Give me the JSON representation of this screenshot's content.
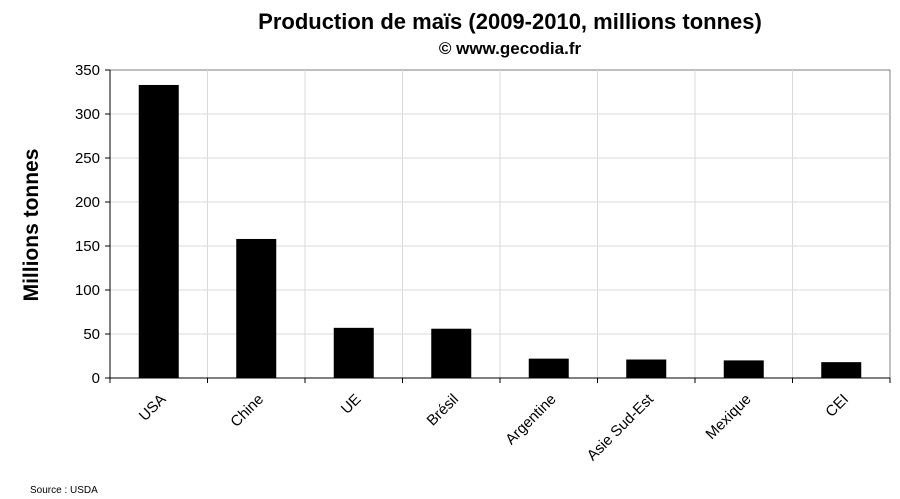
{
  "chart_data": {
    "type": "bar",
    "title": "Production de maïs (2009-2010, millions tonnes)",
    "subtitle": "© www.gecodia.fr",
    "xlabel": "",
    "ylabel": "Millions tonnes",
    "categories": [
      "USA",
      "Chine",
      "UE",
      "Brésil",
      "Argentine",
      "Asie Sud-Est",
      "Mexique",
      "CEI"
    ],
    "values": [
      333,
      158,
      57,
      56,
      22,
      21,
      20,
      18
    ],
    "ylim": [
      0,
      350
    ],
    "yticks": [
      0,
      50,
      100,
      150,
      200,
      250,
      300,
      350
    ],
    "grid": true,
    "bar_color": "#000000",
    "grid_color": "#d9d9d9",
    "source": "Source : USDA"
  }
}
